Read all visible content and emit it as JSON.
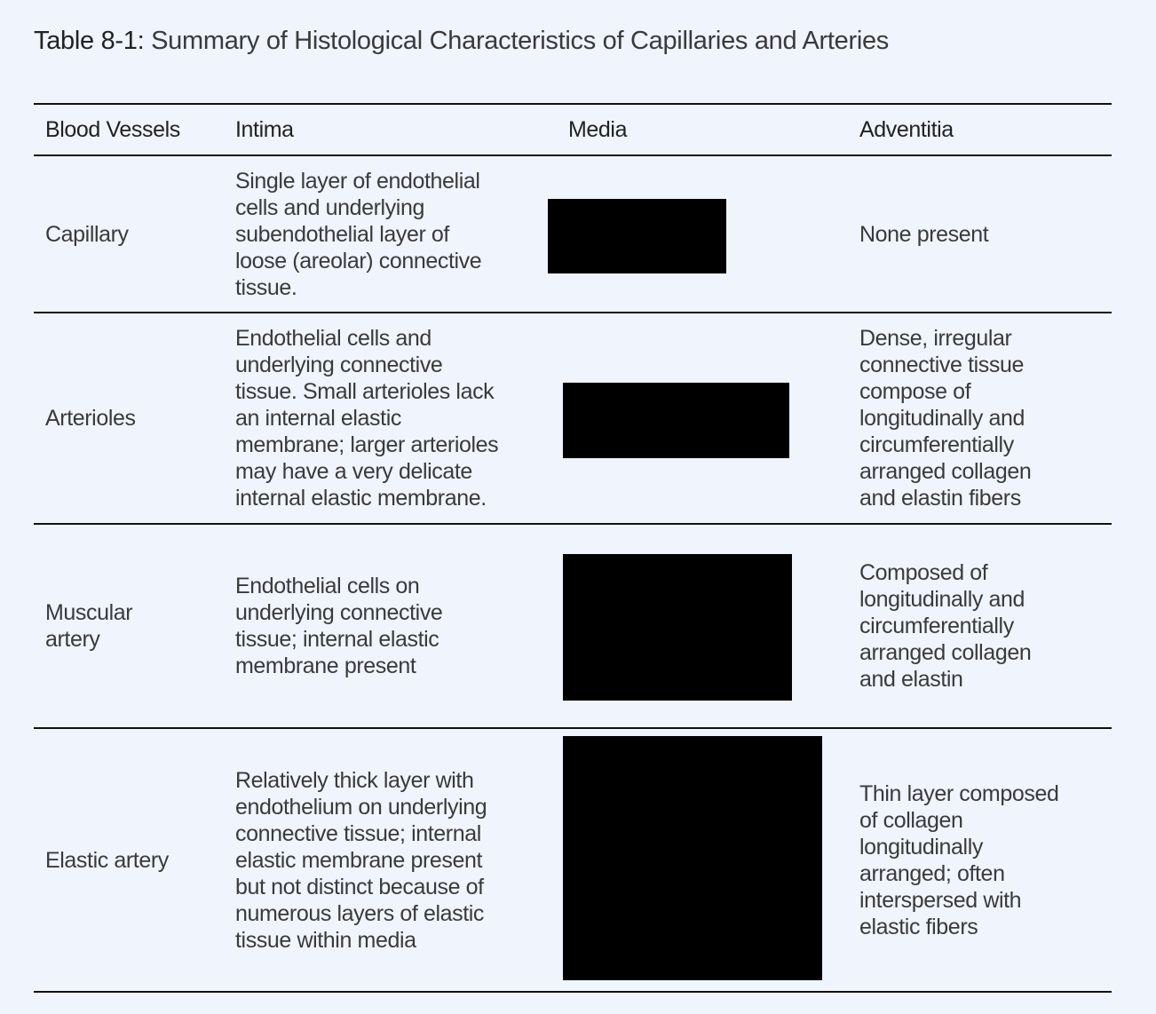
{
  "title": {
    "label": "Table 8-1:",
    "text": "Summary of Histological Characteristics of Capillaries and Arteries"
  },
  "table": {
    "headers": [
      "Blood Vessels",
      "Intima",
      "Media",
      "Adventitia"
    ],
    "rows": [
      {
        "vessel": [
          "Capillary"
        ],
        "intima": [
          "Single layer of endothelial",
          "cells and underlying",
          "subendothelial layer of",
          "loose (areolar) connective",
          "tissue."
        ],
        "media": "[redacted]",
        "adventitia": [
          "None present"
        ]
      },
      {
        "vessel": [
          "Arterioles"
        ],
        "intima": [
          "Endothelial cells and",
          "underlying connective",
          "tissue. Small arterioles lack",
          "an internal elastic",
          "membrane; larger arterioles",
          "may have  a very delicate",
          "internal elastic membrane."
        ],
        "media": "[redacted]",
        "adventitia": [
          "Dense, irregular",
          "connective tissue",
          "compose of",
          "longitudinally and",
          "circumferentially",
          "arranged collagen",
          "and elastin fibers"
        ]
      },
      {
        "vessel": [
          "Muscular",
          "artery"
        ],
        "intima": [
          "Endothelial cells on",
          "underlying connective",
          "tissue; internal elastic",
          "membrane present"
        ],
        "media": "[redacted]",
        "adventitia": [
          "Composed of",
          "longitudinally and",
          "circumferentially",
          "arranged collagen",
          "and elastin"
        ]
      },
      {
        "vessel": [
          "Elastic artery"
        ],
        "intima": [
          "Relatively thick layer with",
          "endothelium on underlying",
          "connective tissue; internal",
          "elastic membrane present",
          "but not distinct because of",
          "numerous layers of elastic",
          "tissue within media"
        ],
        "media": "[redacted]",
        "adventitia": [
          "Thin layer composed",
          "of collagen",
          "longitudinally",
          "arranged; often",
          "interspersed with",
          "elastic fibers"
        ]
      }
    ]
  },
  "colors": {
    "background": "#eff4fd",
    "text": "#3a3a3a",
    "rule": "#111111",
    "redaction": "#000000"
  }
}
